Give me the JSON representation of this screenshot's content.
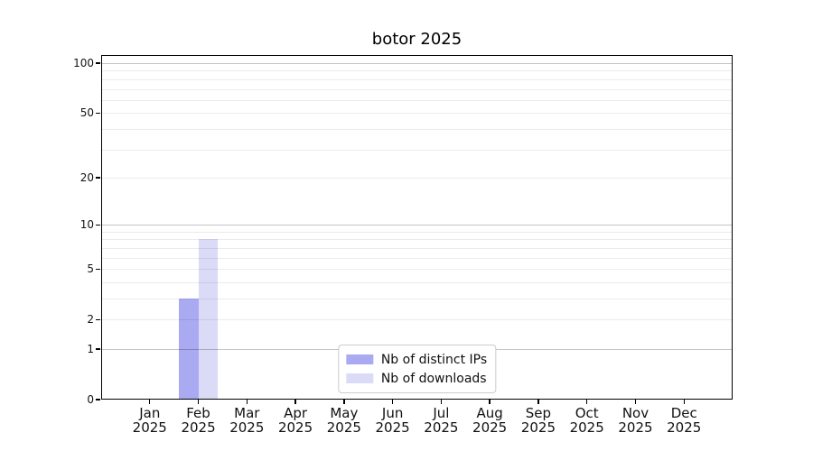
{
  "chart_data": {
    "type": "bar",
    "title": "botor 2025",
    "xlabel": "",
    "ylabel": "",
    "categories": [
      "Jan",
      "Feb",
      "Mar",
      "Apr",
      "May",
      "Jun",
      "Jul",
      "Aug",
      "Sep",
      "Oct",
      "Nov",
      "Dec"
    ],
    "x_year_label": "2025",
    "series": [
      {
        "name": "Nb of distinct IPs",
        "color": "#a9aaf2",
        "values": [
          0,
          3,
          0,
          0,
          0,
          0,
          0,
          0,
          0,
          0,
          0,
          0
        ]
      },
      {
        "name": "Nb of downloads",
        "color": "#dbdbf8",
        "values": [
          0,
          8,
          0,
          0,
          0,
          0,
          0,
          0,
          0,
          0,
          0,
          0
        ]
      }
    ],
    "y_scale": "log1p",
    "ylim": [
      0,
      112
    ],
    "y_ticks": [
      0,
      1,
      2,
      5,
      10,
      20,
      50,
      100
    ],
    "y_major_gridlines": [
      1,
      10,
      100
    ],
    "y_minor_gridlines": [
      2,
      3,
      4,
      5,
      6,
      7,
      8,
      9,
      20,
      30,
      40,
      50,
      60,
      70,
      80,
      90
    ],
    "grid": "horizontal",
    "legend_position": "lower center"
  }
}
